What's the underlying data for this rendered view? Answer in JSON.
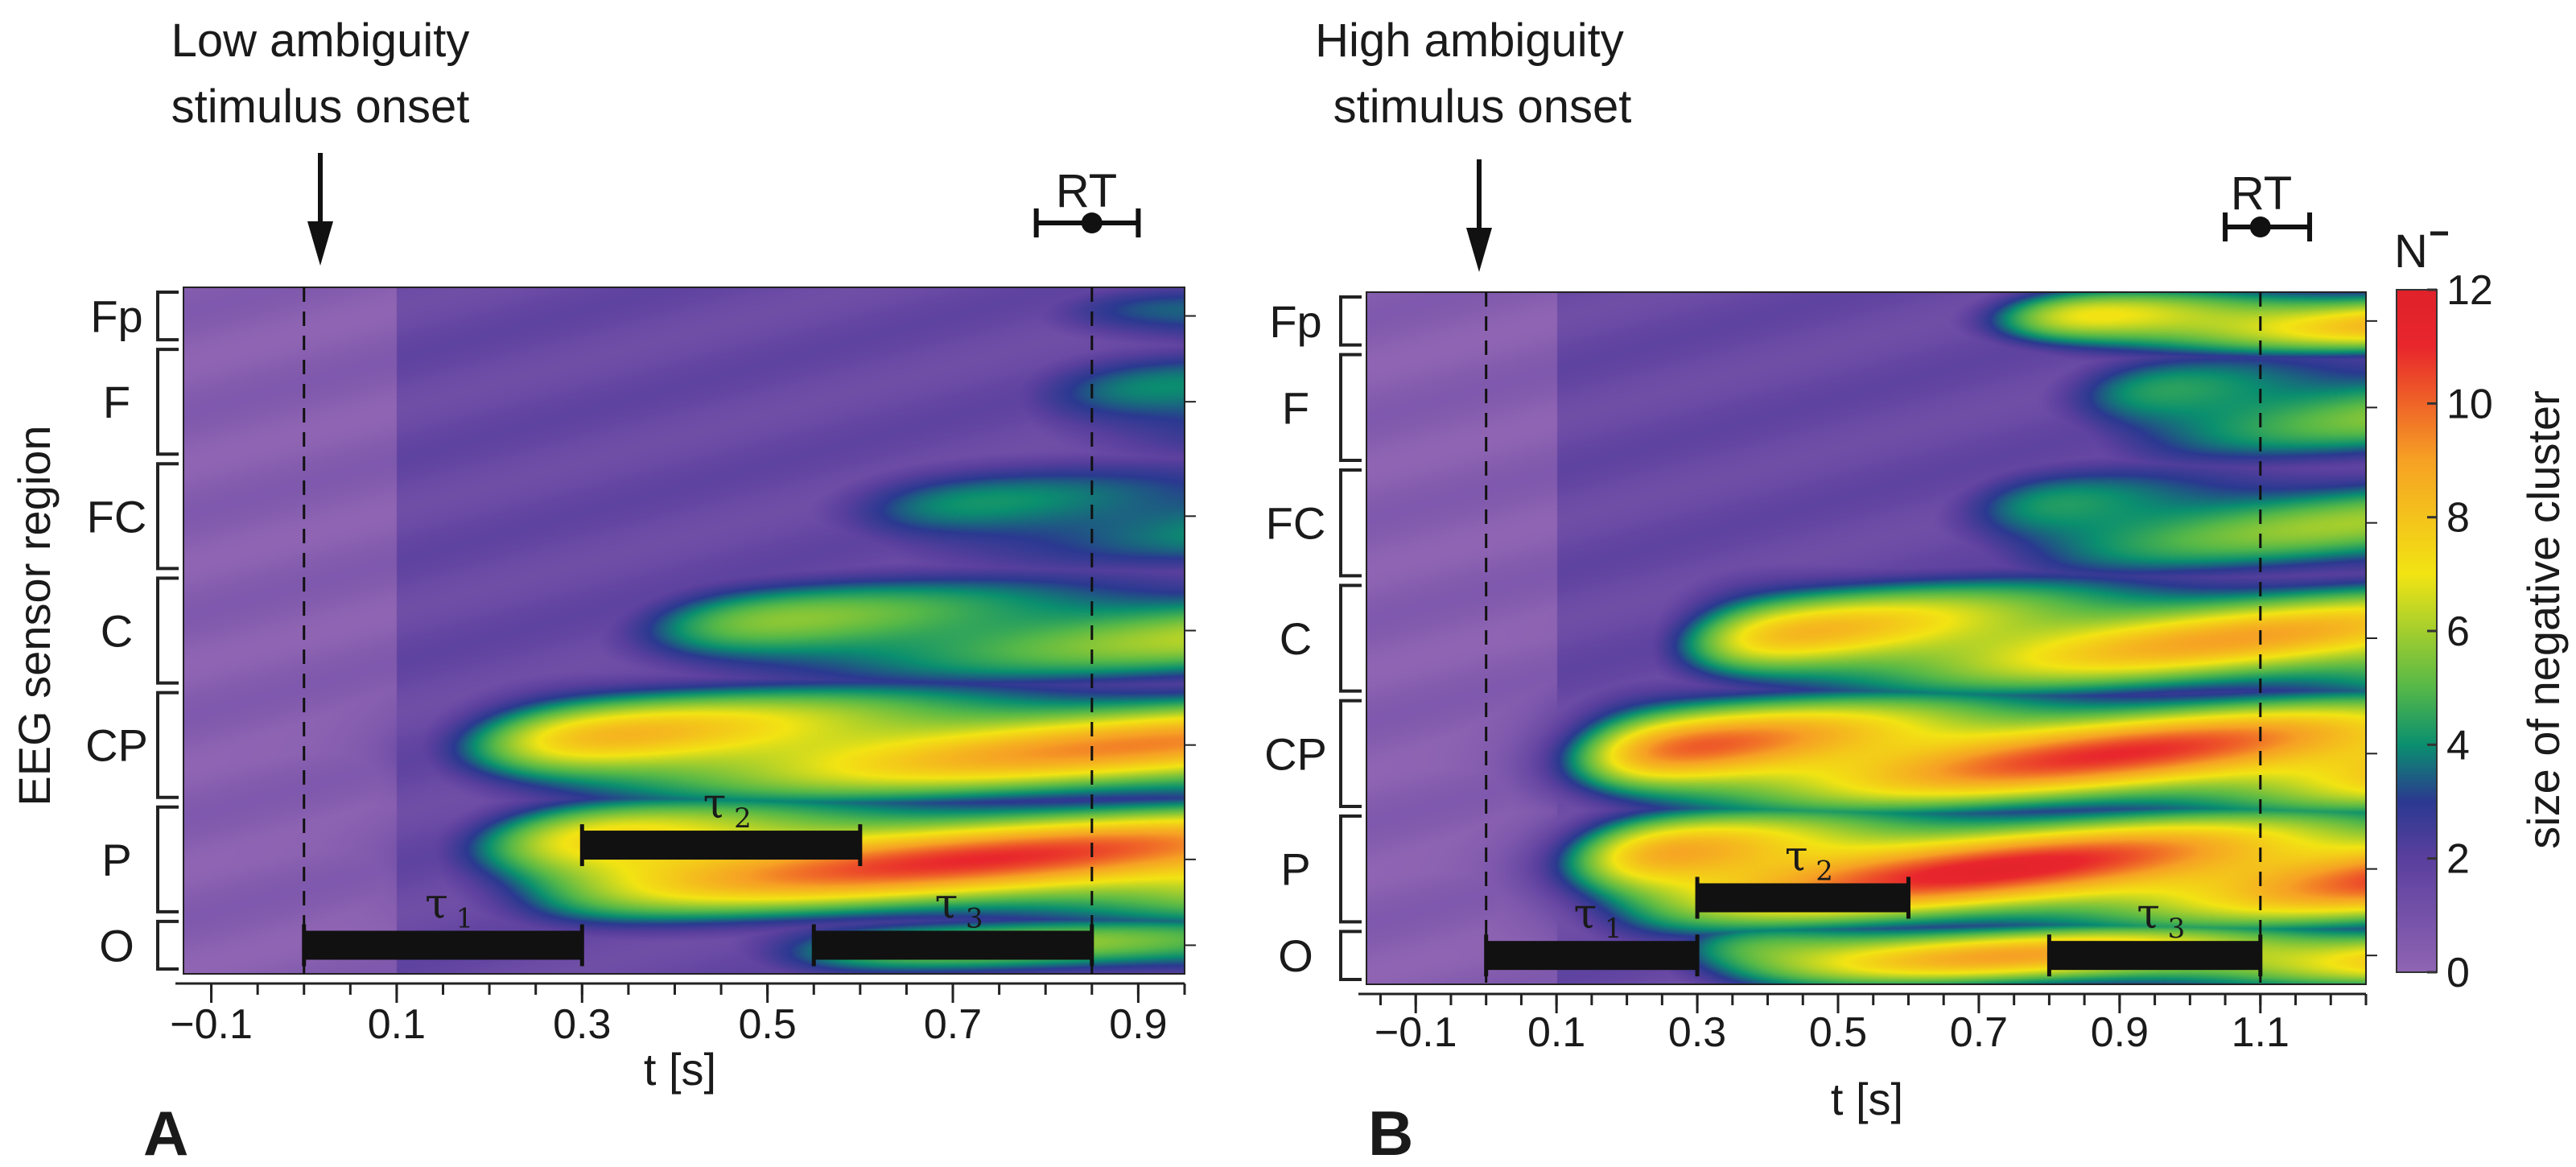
{
  "chart_data": [
    {
      "type": "heatmap",
      "panel_label": "A",
      "onset_label_line1": "Low ambiguity",
      "onset_label_line2": "stimulus onset",
      "rt_label": "RT",
      "xlabel": "t [s]",
      "ylabel": "EEG sensor region",
      "xlim": [
        -0.13,
        0.95
      ],
      "x_ticks": [
        -0.1,
        0.1,
        0.3,
        0.5,
        0.7,
        0.9
      ],
      "x_tick_labels": [
        "−0.1",
        "0.1",
        "0.3",
        "0.5",
        "0.7",
        "0.9"
      ],
      "onset_t": 0.0,
      "rt_t": 0.85,
      "rt_err": [
        0.79,
        0.9
      ],
      "regions": [
        "Fp",
        "F",
        "FC",
        "C",
        "CP",
        "P",
        "O"
      ],
      "region_rows": [
        2,
        4,
        4,
        4,
        4,
        4,
        2
      ],
      "intervals": [
        {
          "symbol": "τ",
          "sub": "1",
          "start": 0.0,
          "end": 0.3,
          "row": 23
        },
        {
          "symbol": "τ",
          "sub": "2",
          "start": 0.3,
          "end": 0.6,
          "row": 19.5
        },
        {
          "symbol": "τ",
          "sub": "3",
          "start": 0.55,
          "end": 0.85,
          "row": 23
        }
      ],
      "field": [
        {
          "regions": [
            "Fp"
          ],
          "onset": 0.83,
          "peak": 5
        },
        {
          "regions": [
            "F"
          ],
          "onset": 0.8,
          "peak": 5
        },
        {
          "regions": [
            "FC"
          ],
          "onset": 0.6,
          "peak": 5
        },
        {
          "regions": [
            "C"
          ],
          "onset": 0.38,
          "peak": 6.5
        },
        {
          "regions": [
            "CP"
          ],
          "onset": 0.2,
          "peak": 9.5
        },
        {
          "regions": [
            "P"
          ],
          "onset": 0.22,
          "peak": 11
        },
        {
          "regions": [
            "O"
          ],
          "onset": 0.5,
          "peak": 6
        }
      ]
    },
    {
      "type": "heatmap",
      "panel_label": "B",
      "onset_label_line1": "High ambiguity",
      "onset_label_line2": "stimulus onset",
      "rt_label": "RT",
      "xlabel": "t [s]",
      "xlim": [
        -0.17,
        1.25
      ],
      "x_ticks": [
        -0.1,
        0.1,
        0.3,
        0.5,
        0.7,
        0.9,
        1.1
      ],
      "x_tick_labels": [
        "−0.1",
        "0.1",
        "0.3",
        "0.5",
        "0.7",
        "0.9",
        "1.1"
      ],
      "onset_t": 0.0,
      "rt_t": 1.1,
      "rt_err": [
        1.05,
        1.17
      ],
      "regions": [
        "Fp",
        "F",
        "FC",
        "C",
        "CP",
        "P",
        "O"
      ],
      "region_rows": [
        2,
        4,
        4,
        4,
        4,
        4,
        2
      ],
      "intervals": [
        {
          "symbol": "τ",
          "sub": "1",
          "start": 0.0,
          "end": 0.3,
          "row": 23
        },
        {
          "symbol": "τ",
          "sub": "2",
          "start": 0.3,
          "end": 0.6,
          "row": 21
        },
        {
          "symbol": "τ",
          "sub": "3",
          "start": 0.8,
          "end": 1.1,
          "row": 23
        }
      ],
      "field": [
        {
          "regions": [
            "Fp"
          ],
          "onset": 0.75,
          "peak": 9
        },
        {
          "regions": [
            "F"
          ],
          "onset": 0.85,
          "peak": 6
        },
        {
          "regions": [
            "FC"
          ],
          "onset": 0.7,
          "peak": 6
        },
        {
          "regions": [
            "C"
          ],
          "onset": 0.3,
          "peak": 9
        },
        {
          "regions": [
            "CP"
          ],
          "onset": 0.15,
          "peak": 11
        },
        {
          "regions": [
            "P"
          ],
          "onset": 0.15,
          "peak": 11.5
        },
        {
          "regions": [
            "O"
          ],
          "onset": 0.3,
          "peak": 9
        }
      ]
    }
  ],
  "colorbar": {
    "title": "N",
    "label": "size of negative cluster",
    "min": 0,
    "max": 12,
    "ticks": [
      0,
      2,
      4,
      6,
      8,
      10,
      12
    ],
    "stops": [
      {
        "v": 0,
        "color": "#8f64b3"
      },
      {
        "v": 2,
        "color": "#5a3f9e"
      },
      {
        "v": 3,
        "color": "#2b3990"
      },
      {
        "v": 4,
        "color": "#0a8f6f"
      },
      {
        "v": 5,
        "color": "#55b848"
      },
      {
        "v": 7,
        "color": "#f2e413"
      },
      {
        "v": 9,
        "color": "#f6a124"
      },
      {
        "v": 11,
        "color": "#e8262c"
      },
      {
        "v": 12,
        "color": "#e0212a"
      }
    ]
  }
}
